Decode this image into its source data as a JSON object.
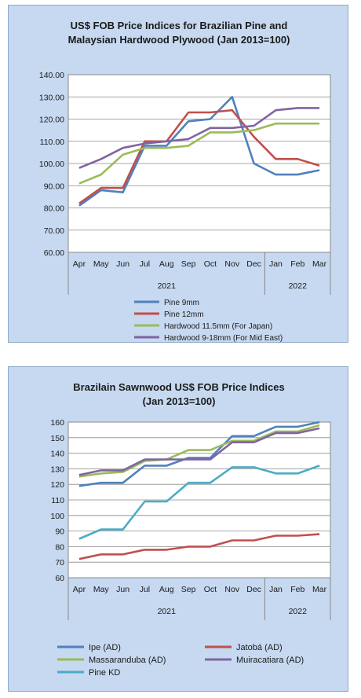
{
  "chart_data": [
    {
      "type": "line",
      "title": [
        "US$ FOB Price Indices for Brazilian  Pine and",
        "Malaysian Hardwood Plywood (Jan 2013=100)"
      ],
      "categories": [
        "Apr",
        "May",
        "Jun",
        "Jul",
        "Aug",
        "Sep",
        "Oct",
        "Nov",
        "Dec",
        "Jan",
        "Feb",
        "Mar"
      ],
      "year_labels": [
        "2021",
        "2022"
      ],
      "ylim": [
        60,
        140
      ],
      "yticks": [
        "60.00",
        "70.00",
        "80.00",
        "90.00",
        "100.00",
        "110.00",
        "120.00",
        "130.00",
        "140.00"
      ],
      "grid": true,
      "legend_position": "bottom",
      "series": [
        {
          "name": "Pine 9mm",
          "color": "#4f81bd",
          "values": [
            81,
            88,
            87,
            108,
            108,
            119,
            120,
            130,
            100,
            95,
            95,
            97
          ]
        },
        {
          "name": "Pine 12mm",
          "color": "#c0504d",
          "values": [
            82,
            89,
            89,
            110,
            110,
            123,
            123,
            124,
            112,
            102,
            102,
            99
          ]
        },
        {
          "name": "Hardwood 11.5mm (For Japan)",
          "color": "#9bbb59",
          "values": [
            91,
            95,
            104,
            107,
            107,
            108,
            114,
            114,
            115,
            118,
            118,
            118
          ]
        },
        {
          "name": "Hardwood 9-18mm (For Mid East)",
          "color": "#8064a2",
          "values": [
            98,
            102,
            107,
            109,
            110,
            111,
            116,
            116,
            117,
            124,
            125,
            125
          ]
        }
      ]
    },
    {
      "type": "line",
      "title": [
        "Brazilain Sawnwood US$ FOB Price Indices",
        "(Jan 2013=100)"
      ],
      "categories": [
        "Apr",
        "May",
        "Jun",
        "Jul",
        "Aug",
        "Sep",
        "Oct",
        "Nov",
        "Dec",
        "Jan",
        "Feb",
        "Mar"
      ],
      "year_labels": [
        "2021",
        "2022"
      ],
      "ylim": [
        60,
        160
      ],
      "yticks": [
        "60",
        "70",
        "80",
        "90",
        "100",
        "110",
        "120",
        "130",
        "140",
        "150",
        "160"
      ],
      "grid": true,
      "legend_position": "bottom",
      "series": [
        {
          "name": "Ipe (AD)",
          "color": "#4f81bd",
          "values": [
            119,
            121,
            121,
            132,
            132,
            137,
            137,
            151,
            151,
            157,
            157,
            160
          ]
        },
        {
          "name": "Jatobá (AD)",
          "color": "#c0504d",
          "values": [
            72,
            75,
            75,
            78,
            78,
            80,
            80,
            84,
            84,
            87,
            87,
            88
          ]
        },
        {
          "name": "Massaranduba (AD)",
          "color": "#9bbb59",
          "values": [
            125,
            127,
            128,
            135,
            136,
            142,
            142,
            148,
            148,
            154,
            154,
            158
          ]
        },
        {
          "name": "Muiracatiara (AD)",
          "color": "#8064a2",
          "values": [
            126,
            129,
            129,
            136,
            136,
            136,
            136,
            147,
            147,
            153,
            153,
            156
          ]
        },
        {
          "name": "Pine KD",
          "color": "#4bacc6",
          "values": [
            85,
            91,
            91,
            109,
            109,
            121,
            121,
            131,
            131,
            127,
            127,
            132
          ]
        }
      ]
    }
  ]
}
